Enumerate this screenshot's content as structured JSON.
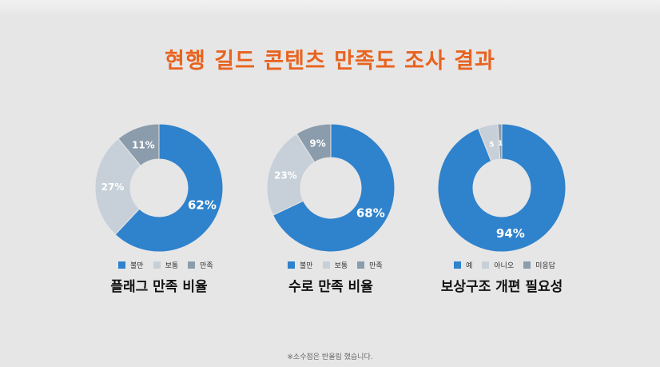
{
  "title": "현행 길드 콘텐츠 만족도 조사 결과",
  "footnote": "※소수점은 반올림 했습니다.",
  "colors": {
    "accent": "#e8631f",
    "blue": "#2f82cc",
    "light": "#c7d0d8",
    "gray": "#8b9cac"
  },
  "chart_data": [
    {
      "type": "pie",
      "title": "플래그 만족 비율",
      "categories": [
        "불만",
        "보통",
        "만족"
      ],
      "values": [
        62,
        27,
        11
      ],
      "labels": [
        "62%",
        "27%",
        "11%"
      ],
      "colors": [
        "#2f82cc",
        "#c7d0d8",
        "#8b9cac"
      ],
      "donut": true
    },
    {
      "type": "pie",
      "title": "수로 만족 비율",
      "categories": [
        "불만",
        "보통",
        "만족"
      ],
      "values": [
        68,
        23,
        9
      ],
      "labels": [
        "68%",
        "23%",
        "9%"
      ],
      "colors": [
        "#2f82cc",
        "#c7d0d8",
        "#8b9cac"
      ],
      "donut": true
    },
    {
      "type": "pie",
      "title": "보상구조 개편 필요성",
      "categories": [
        "예",
        "아니오",
        "미응답"
      ],
      "values": [
        94,
        5,
        1
      ],
      "labels": [
        "94%",
        "5",
        "1"
      ],
      "colors": [
        "#2f82cc",
        "#c7d0d8",
        "#8b9cac"
      ],
      "donut": true
    }
  ]
}
